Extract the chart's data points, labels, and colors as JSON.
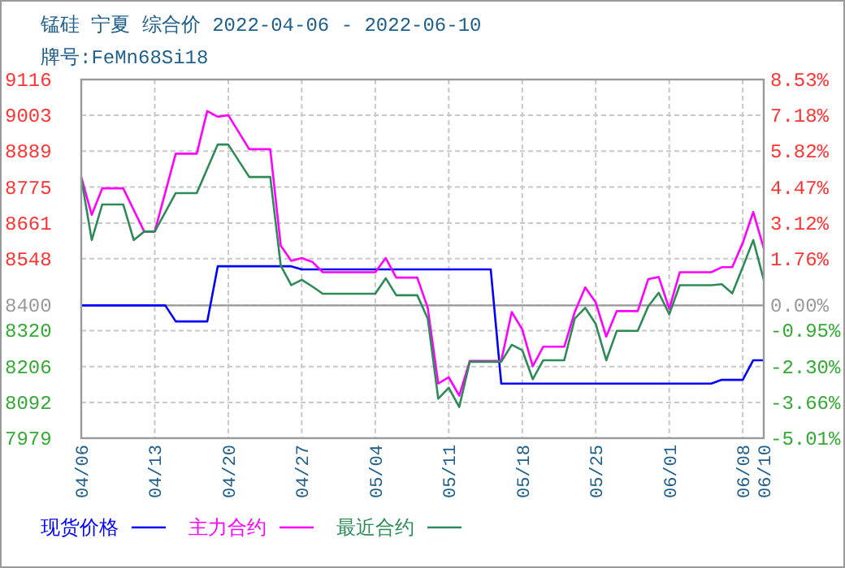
{
  "chart_data": {
    "type": "line",
    "title": "锰硅 宁夏 综合价 2022-04-06 - 2022-06-10",
    "subtitle": "牌号:FeMn68Si18",
    "xlim": [
      "2022-04-06",
      "2022-06-10"
    ],
    "xticks": [
      {
        "value": "2022-04-06",
        "label": "04/06"
      },
      {
        "value": "2022-04-13",
        "label": "04/13"
      },
      {
        "value": "2022-04-20",
        "label": "04/20"
      },
      {
        "value": "2022-04-27",
        "label": "04/27"
      },
      {
        "value": "2022-05-04",
        "label": "05/04"
      },
      {
        "value": "2022-05-11",
        "label": "05/11"
      },
      {
        "value": "2022-05-18",
        "label": "05/18"
      },
      {
        "value": "2022-05-25",
        "label": "05/25"
      },
      {
        "value": "2022-06-01",
        "label": "06/01"
      },
      {
        "value": "2022-06-08",
        "label": "06/08"
      },
      {
        "value": "2022-06-10",
        "label": "06/10"
      }
    ],
    "ylim": [
      7979,
      9116
    ],
    "yticks": [
      7979,
      8092,
      8206,
      8320,
      8400,
      8548,
      8661,
      8775,
      8889,
      9003,
      9116
    ],
    "y2lim": [
      -5.01,
      8.53
    ],
    "y2ticks": [
      {
        "value": -5.01,
        "label": "-5.01%"
      },
      {
        "value": -3.66,
        "label": "-3.66%"
      },
      {
        "value": -2.3,
        "label": "-2.30%"
      },
      {
        "value": -0.95,
        "label": "-0.95%"
      },
      {
        "value": 0,
        "label": "0.00%"
      },
      {
        "value": 1.76,
        "label": "1.76%"
      },
      {
        "value": 3.12,
        "label": "3.12%"
      },
      {
        "value": 4.47,
        "label": "4.47%"
      },
      {
        "value": 5.82,
        "label": "5.82%"
      },
      {
        "value": 7.18,
        "label": "7.18%"
      },
      {
        "value": 8.53,
        "label": "8.53%"
      }
    ],
    "grid": true,
    "legend": "bottom",
    "ref_lines": [
      {
        "axis": "y",
        "value": 8400,
        "color": "#999999"
      }
    ],
    "series": [
      {
        "name": "现货价格",
        "color": "#0000ff",
        "x": [
          "2022-04-06",
          "2022-04-14",
          "2022-04-15",
          "2022-04-18",
          "2022-04-19",
          "2022-04-26",
          "2022-04-27",
          "2022-05-15",
          "2022-05-16",
          "2022-06-05",
          "2022-06-06",
          "2022-06-08",
          "2022-06-09",
          "2022-06-10"
        ],
        "values": [
          8400,
          8400,
          8349,
          8349,
          8524,
          8524,
          8514,
          8514,
          8152,
          8152,
          8164,
          8164,
          8226,
          8226
        ]
      },
      {
        "name": "主力合约",
        "color": "#ff00ff",
        "x": [
          "2022-04-06",
          "2022-04-07",
          "2022-04-08",
          "2022-04-10",
          "2022-04-12",
          "2022-04-13",
          "2022-04-15",
          "2022-04-17",
          "2022-04-18",
          "2022-04-19",
          "2022-04-20",
          "2022-04-22",
          "2022-04-24",
          "2022-04-25",
          "2022-04-26",
          "2022-04-27",
          "2022-04-28",
          "2022-04-29",
          "2022-05-04",
          "2022-05-05",
          "2022-05-06",
          "2022-05-08",
          "2022-05-09",
          "2022-05-10",
          "2022-05-11",
          "2022-05-12",
          "2022-05-13",
          "2022-05-16",
          "2022-05-17",
          "2022-05-18",
          "2022-05-19",
          "2022-05-20",
          "2022-05-22",
          "2022-05-23",
          "2022-05-24",
          "2022-05-25",
          "2022-05-26",
          "2022-05-27",
          "2022-05-29",
          "2022-05-30",
          "2022-05-31",
          "2022-06-01",
          "2022-06-02",
          "2022-06-05",
          "2022-06-06",
          "2022-06-07",
          "2022-06-08",
          "2022-06-09",
          "2022-06-10"
        ],
        "values": [
          8807,
          8687,
          8771,
          8771,
          8634,
          8634,
          8881,
          8881,
          9016,
          8998,
          9003,
          8895,
          8895,
          8589,
          8541,
          8550,
          8538,
          8505,
          8505,
          8550,
          8488,
          8488,
          8392,
          8152,
          8172,
          8114,
          8224,
          8224,
          8379,
          8324,
          8207,
          8269,
          8269,
          8379,
          8457,
          8409,
          8301,
          8382,
          8382,
          8483,
          8490,
          8389,
          8505,
          8505,
          8521,
          8521,
          8598,
          8696,
          8581
        ]
      },
      {
        "name": "最近合约",
        "color": "#2e8b57",
        "x": [
          "2022-04-06",
          "2022-04-07",
          "2022-04-08",
          "2022-04-10",
          "2022-04-11",
          "2022-04-12",
          "2022-04-13",
          "2022-04-15",
          "2022-04-17",
          "2022-04-19",
          "2022-04-20",
          "2022-04-22",
          "2022-04-24",
          "2022-04-25",
          "2022-04-26",
          "2022-04-27",
          "2022-04-28",
          "2022-04-29",
          "2022-05-04",
          "2022-05-05",
          "2022-05-06",
          "2022-05-08",
          "2022-05-09",
          "2022-05-10",
          "2022-05-11",
          "2022-05-12",
          "2022-05-13",
          "2022-05-16",
          "2022-05-17",
          "2022-05-18",
          "2022-05-19",
          "2022-05-20",
          "2022-05-22",
          "2022-05-23",
          "2022-05-24",
          "2022-05-25",
          "2022-05-26",
          "2022-05-27",
          "2022-05-29",
          "2022-05-30",
          "2022-05-31",
          "2022-06-01",
          "2022-06-02",
          "2022-06-05",
          "2022-06-06",
          "2022-06-07",
          "2022-06-08",
          "2022-06-09",
          "2022-06-10"
        ],
        "values": [
          8804,
          8607,
          8720,
          8720,
          8607,
          8634,
          8634,
          8756,
          8756,
          8910,
          8910,
          8807,
          8807,
          8526,
          8464,
          8481,
          8460,
          8437,
          8437,
          8486,
          8432,
          8432,
          8358,
          8104,
          8139,
          8078,
          8221,
          8221,
          8275,
          8258,
          8166,
          8226,
          8226,
          8358,
          8392,
          8341,
          8226,
          8319,
          8319,
          8397,
          8440,
          8372,
          8464,
          8464,
          8467,
          8438,
          8521,
          8607,
          8481
        ]
      }
    ]
  }
}
